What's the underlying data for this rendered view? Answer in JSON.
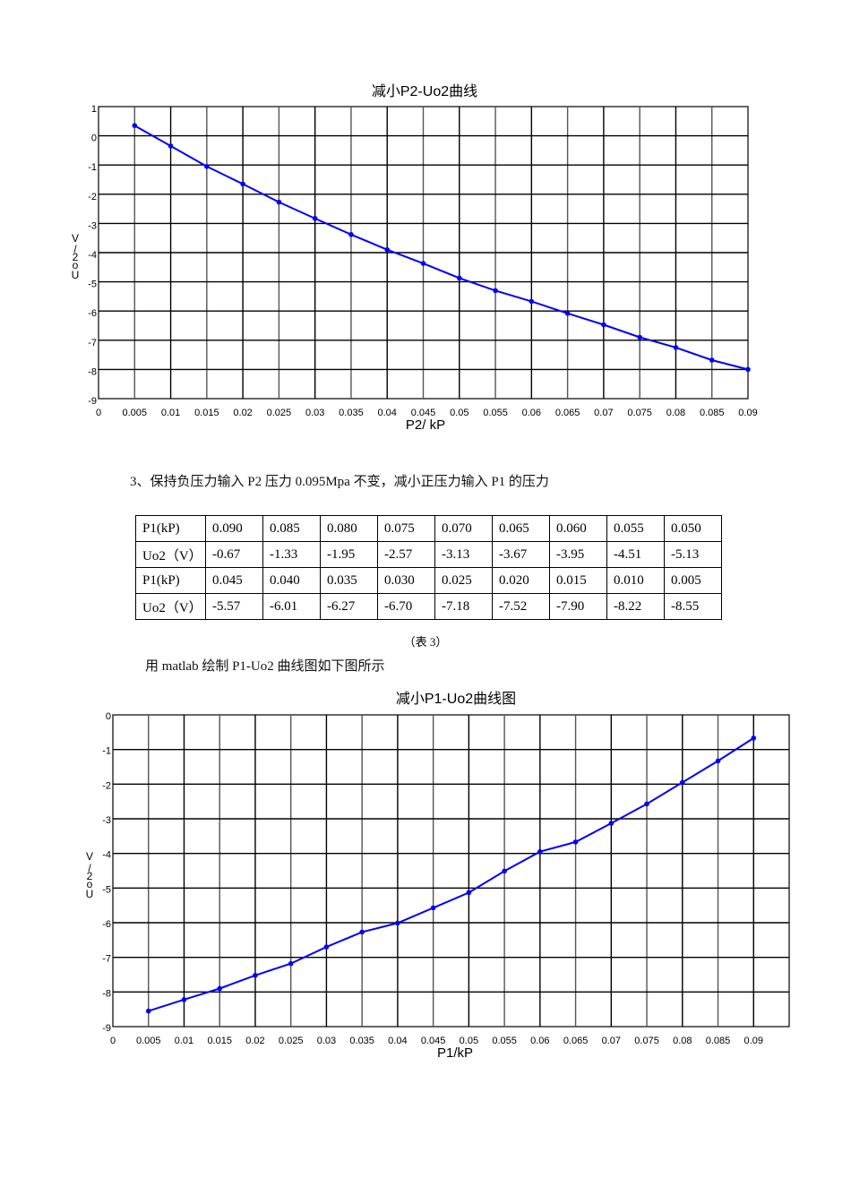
{
  "section": {
    "heading": "3、保持负压力输入 P2 压力 0.095Mpa 不变，减小正压力输入 P1 的压力",
    "table_caption": "（表 3）",
    "plot_intro": "用 matlab 绘制 P1-Uo2 曲线图如下图所示"
  },
  "table": {
    "rows": [
      [
        "P1(kP)",
        "0.090",
        "0.085",
        "0.080",
        "0.075",
        "0.070",
        "0.065",
        "0.060",
        "0.055",
        "0.050"
      ],
      [
        "Uo2（V）",
        "-0.67",
        "-1.33",
        "-1.95",
        "-2.57",
        "-3.13",
        "-3.67",
        "-3.95",
        "-4.51",
        "-5.13"
      ],
      [
        "P1(kP)",
        "0.045",
        "0.040",
        "0.035",
        "0.030",
        "0.025",
        "0.020",
        "0.015",
        "0.010",
        "0.005"
      ],
      [
        "Uo2（V）",
        "-5.57",
        "-6.01",
        "-6.27",
        "-6.70",
        "-7.18",
        "-7.52",
        "-7.90",
        "-8.22",
        "-8.55"
      ]
    ]
  },
  "chart_data": [
    {
      "type": "line",
      "title": "减小P2-Uo2曲线",
      "xlabel": "P2/ kP",
      "ylabel": "Uo2/V",
      "x": [
        0.005,
        0.01,
        0.015,
        0.02,
        0.025,
        0.03,
        0.035,
        0.04,
        0.045,
        0.05,
        0.055,
        0.06,
        0.065,
        0.07,
        0.075,
        0.08,
        0.085,
        0.09
      ],
      "series": [
        {
          "name": "Uo2",
          "color": "#0000ff",
          "values": [
            0.35,
            -0.35,
            -1.05,
            -1.65,
            -2.27,
            -2.83,
            -3.38,
            -3.9,
            -4.37,
            -4.87,
            -5.3,
            -5.67,
            -6.08,
            -6.47,
            -6.9,
            -7.25,
            -7.68,
            -8.0
          ]
        }
      ],
      "xticks": [
        "0",
        "0.005",
        "0.01",
        "0.015",
        "0.02",
        "0.025",
        "0.03",
        "0.035",
        "0.04",
        "0.045",
        "0.05",
        "0.055",
        "0.06",
        "0.065",
        "0.07",
        "0.075",
        "0.08",
        "0.085",
        "0.09"
      ],
      "yticks": [
        "1",
        "0",
        "-1",
        "-2",
        "-3",
        "-4",
        "-5",
        "-6",
        "-7",
        "-8",
        "-9"
      ],
      "xlim": [
        0,
        0.09
      ],
      "ylim": [
        -9,
        1
      ],
      "grid": true,
      "legend": "none"
    },
    {
      "type": "line",
      "title": "减小P1-Uo2曲线图",
      "xlabel": "P1/kP",
      "ylabel": "Uo2/V",
      "x": [
        0.005,
        0.01,
        0.015,
        0.02,
        0.025,
        0.03,
        0.035,
        0.04,
        0.045,
        0.05,
        0.055,
        0.06,
        0.065,
        0.07,
        0.075,
        0.08,
        0.085,
        0.09
      ],
      "series": [
        {
          "name": "Uo2",
          "color": "#0000ff",
          "values": [
            -8.55,
            -8.22,
            -7.9,
            -7.52,
            -7.18,
            -6.7,
            -6.27,
            -6.01,
            -5.57,
            -5.13,
            -4.51,
            -3.95,
            -3.67,
            -3.13,
            -2.57,
            -1.95,
            -1.33,
            -0.67
          ]
        }
      ],
      "xticks": [
        "0",
        "0.005",
        "0.01",
        "0.015",
        "0.02",
        "0.025",
        "0.03",
        "0.035",
        "0.04",
        "0.045",
        "0.05",
        "0.055",
        "0.06",
        "0.065",
        "0.07",
        "0.075",
        "0.08",
        "0.085",
        "0.09"
      ],
      "yticks": [
        "0",
        "-1",
        "-2",
        "-3",
        "-4",
        "-5",
        "-6",
        "-7",
        "-8",
        "-9"
      ],
      "xlim": [
        0,
        0.095
      ],
      "ylim": [
        -9,
        0
      ],
      "grid": true,
      "legend": "none"
    }
  ]
}
